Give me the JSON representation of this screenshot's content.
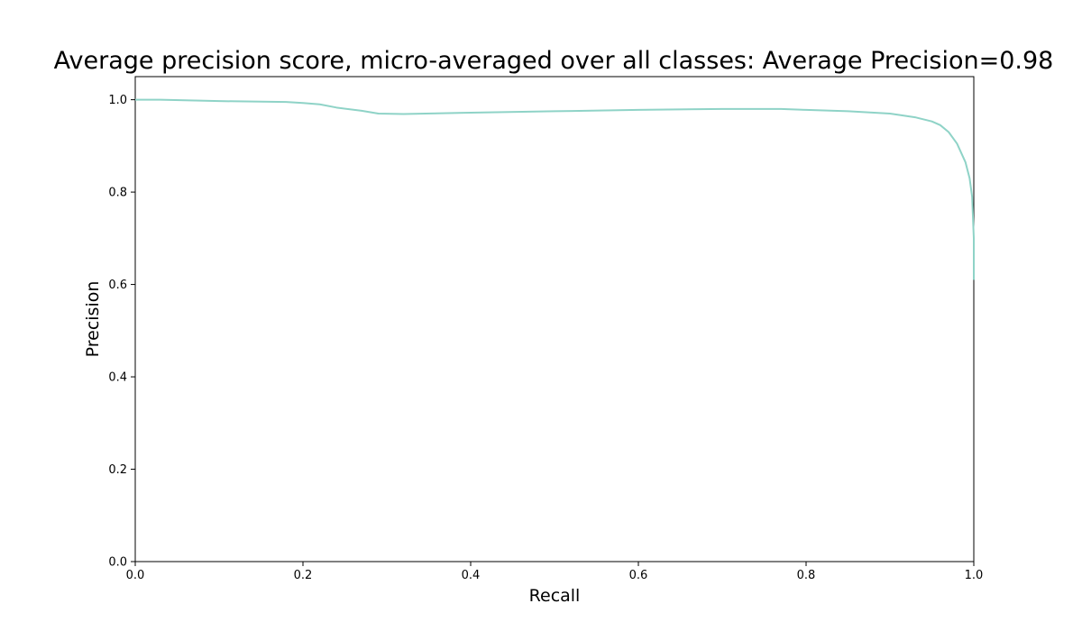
{
  "chart_data": {
    "type": "line",
    "title": "Average precision score, micro-averaged over all classes: Average Precision=0.98",
    "xlabel": "Recall",
    "ylabel": "Precision",
    "xlim": [
      0.0,
      1.0
    ],
    "ylim": [
      0.0,
      1.05
    ],
    "xticks": [
      "0.0",
      "0.2",
      "0.4",
      "0.6",
      "0.8",
      "1.0"
    ],
    "yticks": [
      "0.0",
      "0.2",
      "0.4",
      "0.6",
      "0.8",
      "1.0"
    ],
    "grid": false,
    "line_color": "#8fd3c7",
    "series": [
      {
        "x": [
          0.0,
          0.03,
          0.1,
          0.18,
          0.2,
          0.22,
          0.24,
          0.27,
          0.29,
          0.32,
          0.4,
          0.5,
          0.6,
          0.7,
          0.77,
          0.8,
          0.85,
          0.9,
          0.93,
          0.95,
          0.96,
          0.97,
          0.98,
          0.99,
          0.995,
          0.998,
          1.0,
          1.0
        ],
        "y": [
          1.0,
          1.0,
          0.997,
          0.995,
          0.993,
          0.99,
          0.983,
          0.976,
          0.97,
          0.969,
          0.972,
          0.975,
          0.978,
          0.98,
          0.98,
          0.978,
          0.975,
          0.97,
          0.962,
          0.953,
          0.945,
          0.93,
          0.905,
          0.865,
          0.83,
          0.79,
          0.7,
          0.61
        ]
      }
    ]
  }
}
